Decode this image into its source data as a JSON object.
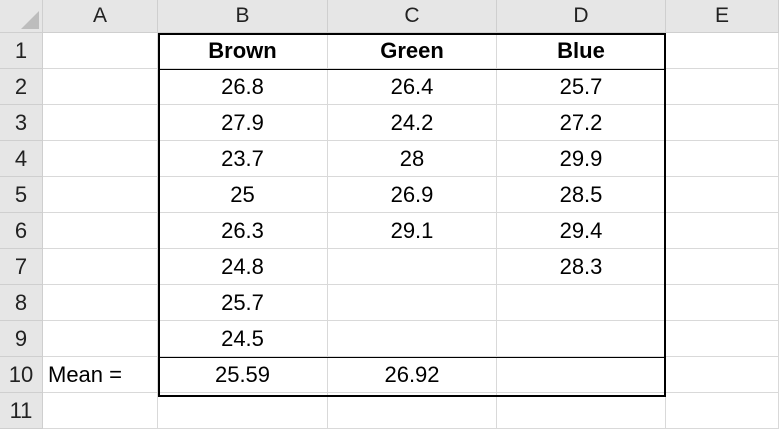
{
  "columns": [
    "A",
    "B",
    "C",
    "D",
    "E"
  ],
  "rows": [
    "1",
    "2",
    "3",
    "4",
    "5",
    "6",
    "7",
    "8",
    "9",
    "10",
    "11"
  ],
  "header_row": {
    "brown": "Brown",
    "green": "Green",
    "blue": "Blue"
  },
  "data": {
    "brown": [
      "26.8",
      "27.9",
      "23.7",
      "25",
      "26.3",
      "24.8",
      "25.7",
      "24.5"
    ],
    "green": [
      "26.4",
      "24.2",
      "28",
      "26.9",
      "29.1",
      "",
      "",
      ""
    ],
    "blue": [
      "25.7",
      "27.2",
      "29.9",
      "28.5",
      "29.4",
      "28.3",
      "",
      ""
    ]
  },
  "mean_row": {
    "label": "Mean =",
    "brown": "25.59",
    "green": "26.92",
    "blue": ""
  }
}
